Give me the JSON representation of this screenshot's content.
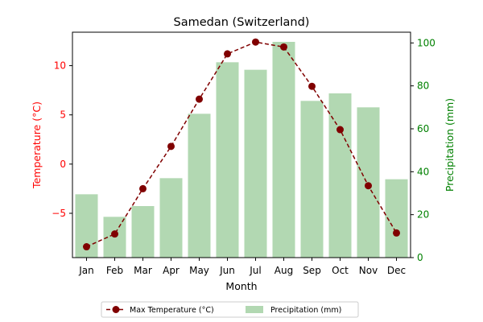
{
  "chart_data": {
    "type": "bar",
    "title": "Samedan (Switzerland)",
    "xlabel": "Month",
    "ylabel_left": "Temperature (°C)",
    "ylabel_right": "Precipitation (mm)",
    "categories": [
      "Jan",
      "Feb",
      "Mar",
      "Apr",
      "May",
      "Jun",
      "Jul",
      "Aug",
      "Sep",
      "Oct",
      "Nov",
      "Dec"
    ],
    "left_axis": {
      "range": [
        -9.5,
        13.4
      ],
      "ticks": [
        -5,
        0,
        5,
        10
      ],
      "color": "#ff0000"
    },
    "right_axis": {
      "range": [
        0,
        105
      ],
      "ticks": [
        0,
        20,
        40,
        60,
        80,
        100
      ],
      "color": "#008000"
    },
    "series": [
      {
        "name": "Max Temperature (°C)",
        "type": "line",
        "axis": "left",
        "style": "dashed",
        "color": "#800000",
        "values": [
          -8.4,
          -7.1,
          -2.5,
          1.8,
          6.6,
          11.2,
          12.4,
          11.9,
          7.9,
          3.5,
          -2.2,
          -7.0
        ]
      },
      {
        "name": "Precipitation (mm)",
        "type": "bar",
        "axis": "right",
        "color": "#b2d8b2",
        "values": [
          29.5,
          19,
          24,
          37,
          67,
          91,
          87.5,
          100.5,
          73,
          76.5,
          70,
          36.5
        ]
      }
    ],
    "legend": {
      "placement": "bottom-center",
      "columns": 2
    },
    "grid": false
  }
}
